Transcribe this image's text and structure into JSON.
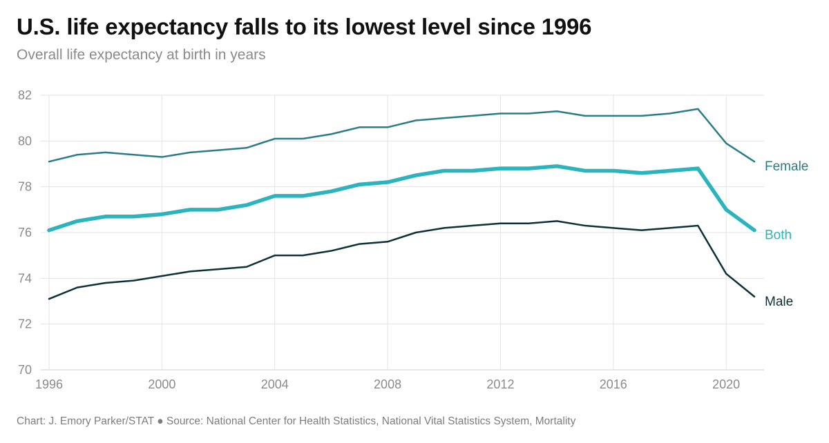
{
  "header": {
    "title": "U.S. life expectancy falls to its lowest level since 1996",
    "subtitle": "Overall life expectancy at birth in years"
  },
  "footer": {
    "credit": "Chart: J. Emory Parker/STAT ● Source: National Center for Health Statistics, National Vital Statistics System, Mortality"
  },
  "chart_data": {
    "type": "line",
    "title": "U.S. life expectancy falls to its lowest level since 1996",
    "subtitle": "Overall life expectancy at birth in years",
    "xlabel": "",
    "ylabel": "",
    "x": [
      1996,
      1997,
      1998,
      1999,
      2000,
      2001,
      2002,
      2003,
      2004,
      2005,
      2006,
      2007,
      2008,
      2009,
      2010,
      2011,
      2012,
      2013,
      2014,
      2015,
      2016,
      2017,
      2018,
      2019,
      2020,
      2021
    ],
    "xlim": [
      1996,
      2021
    ],
    "ylim": [
      70,
      82
    ],
    "xticks": [
      1996,
      2000,
      2004,
      2008,
      2012,
      2016,
      2020
    ],
    "yticks": [
      70,
      72,
      74,
      76,
      78,
      80,
      82
    ],
    "grid": true,
    "legend": "direct labels at line ends",
    "series": [
      {
        "name": "Female",
        "color": "#2a7c86",
        "values": [
          79.1,
          79.4,
          79.5,
          79.4,
          79.3,
          79.5,
          79.6,
          79.7,
          80.1,
          80.1,
          80.3,
          80.6,
          80.6,
          80.9,
          81.0,
          81.1,
          81.2,
          81.2,
          81.3,
          81.1,
          81.1,
          81.1,
          81.2,
          81.4,
          79.9,
          79.1
        ]
      },
      {
        "name": "Both",
        "color": "#2bb3be",
        "values": [
          76.1,
          76.5,
          76.7,
          76.7,
          76.8,
          77.0,
          77.0,
          77.2,
          77.6,
          77.6,
          77.8,
          78.1,
          78.2,
          78.5,
          78.7,
          78.7,
          78.8,
          78.8,
          78.9,
          78.7,
          78.7,
          78.6,
          78.7,
          78.8,
          77.0,
          76.1
        ]
      },
      {
        "name": "Male",
        "color": "#0d2f38",
        "values": [
          73.1,
          73.6,
          73.8,
          73.9,
          74.1,
          74.3,
          74.4,
          74.5,
          75.0,
          75.0,
          75.2,
          75.5,
          75.6,
          76.0,
          76.2,
          76.3,
          76.4,
          76.4,
          76.5,
          76.3,
          76.2,
          76.1,
          76.2,
          76.3,
          74.2,
          73.2
        ]
      }
    ]
  }
}
